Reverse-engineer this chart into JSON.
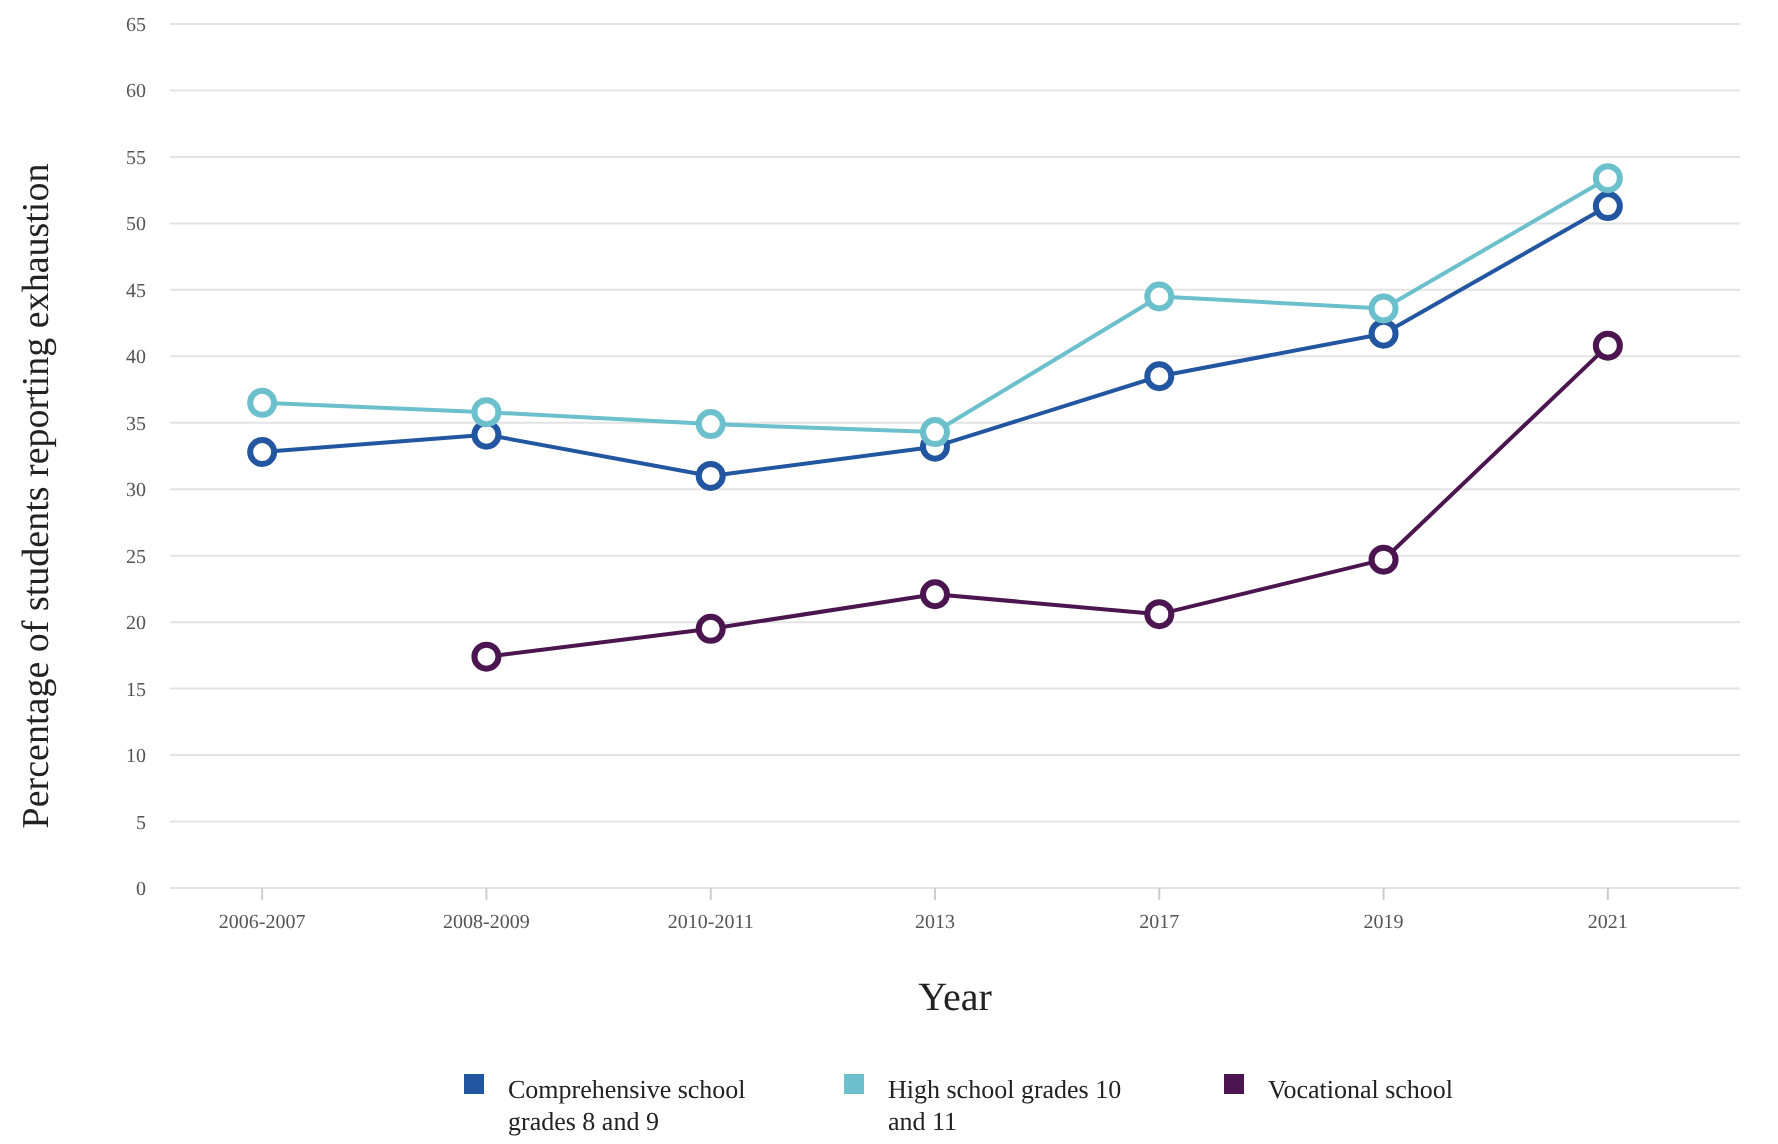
{
  "chart_data": {
    "type": "line",
    "xlabel": "Year",
    "ylabel": "Percentage of students reporting exhaustion",
    "categories": [
      "2006-2007",
      "2008-2009",
      "2010-2011",
      "2013",
      "2017",
      "2019",
      "2021"
    ],
    "ylim": [
      0,
      65
    ],
    "yticks": [
      0,
      5,
      10,
      15,
      20,
      25,
      30,
      35,
      40,
      45,
      50,
      55,
      60,
      65
    ],
    "grid": "y",
    "legend": "bottom",
    "marker": "circle",
    "line_style": "solid",
    "series": [
      {
        "name": "Comprehensive school grades 8 and 9",
        "color": "#2356a0",
        "values": [
          32.8,
          34.1,
          31.0,
          33.2,
          38.5,
          41.7,
          51.3
        ]
      },
      {
        "name": "High school grades 10 and 11",
        "color": "#6cc0cc",
        "values": [
          36.5,
          35.8,
          34.9,
          34.3,
          44.5,
          43.6,
          53.4
        ]
      },
      {
        "name": "Vocational school",
        "color": "#4b1650",
        "values": [
          null,
          17.4,
          19.5,
          22.1,
          20.6,
          24.7,
          40.8
        ]
      }
    ]
  }
}
